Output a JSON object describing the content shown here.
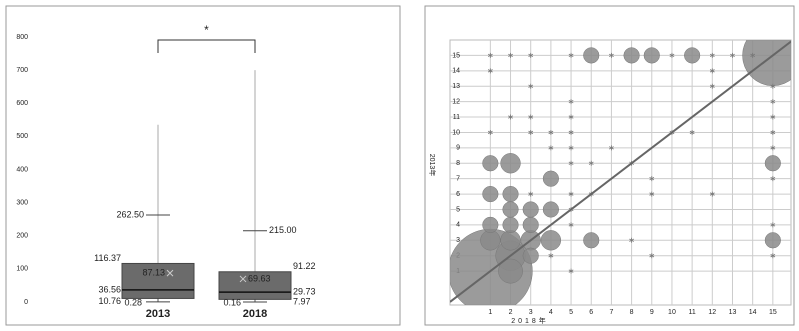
{
  "chart_data": [
    {
      "type": "box",
      "categories": [
        "2013",
        "2018"
      ],
      "color": "#6b6b6b",
      "ylim": [
        0,
        800
      ],
      "yticks": [
        0,
        100,
        200,
        300,
        400,
        500,
        600,
        700,
        800
      ],
      "significance": "*",
      "boxes": [
        {
          "whisker_low": 0.28,
          "q1": 10.76,
          "median": 36.56,
          "mean": 87.13,
          "q3": 116.37,
          "whisker_high": 262.5,
          "max": 535,
          "value_labels": {
            "whisker_high": "262.50"
          }
        },
        {
          "whisker_low": 0.16,
          "q1": 7.97,
          "median": 29.73,
          "mean": 69.63,
          "q3": 91.22,
          "whisker_high": 215,
          "max": 700,
          "value_labels": {
            "whisker_high": "215.00"
          }
        }
      ]
    },
    {
      "type": "bubble",
      "xlabel": "2018年",
      "ylabel": "2013年",
      "color": "#8a8a8a",
      "diagonal": true,
      "grid": true,
      "xlim": [
        -1,
        15.9
      ],
      "ylim": [
        -1.2,
        16
      ],
      "xticks": [
        1,
        2,
        3,
        4,
        5,
        6,
        7,
        8,
        9,
        10,
        11,
        12,
        13,
        14,
        15
      ],
      "yticks": [
        1,
        2,
        3,
        4,
        5,
        6,
        7,
        8,
        9,
        10,
        11,
        12,
        13,
        14,
        15
      ],
      "x": [
        1,
        2,
        2,
        1,
        2,
        3,
        4,
        1,
        2,
        3,
        1,
        2,
        3,
        2,
        4,
        1,
        2,
        3,
        6,
        15,
        15,
        4,
        6,
        8,
        9,
        11,
        15,
        1,
        2,
        3,
        5,
        7,
        10,
        12,
        13,
        14,
        1,
        12,
        3,
        12,
        15,
        5,
        15,
        2,
        3,
        5,
        15,
        1,
        3,
        4,
        5,
        10,
        11,
        15,
        4,
        5,
        7,
        9,
        15,
        5,
        6,
        8,
        15,
        5,
        6,
        9,
        3,
        5,
        12,
        5,
        8,
        15,
        9,
        4,
        15,
        5
      ],
      "y": [
        1,
        2,
        1,
        3,
        3,
        3,
        3,
        4,
        4,
        4,
        6,
        6,
        5,
        5,
        5,
        8,
        8,
        2,
        3,
        8,
        3,
        7,
        15,
        15,
        15,
        15,
        15,
        15,
        15,
        15,
        15,
        15,
        15,
        15,
        15,
        15,
        14,
        14,
        13,
        13,
        13,
        12,
        12,
        11,
        11,
        11,
        11,
        10,
        10,
        10,
        10,
        10,
        10,
        10,
        9,
        9,
        9,
        7,
        7,
        8,
        8,
        8,
        9,
        6,
        6,
        6,
        6,
        5,
        6,
        4,
        3,
        4,
        2,
        2,
        2,
        1
      ],
      "sizes": [
        144,
        18,
        12,
        8,
        8,
        8,
        8,
        5,
        5,
        5,
        5,
        5,
        5,
        5,
        5,
        5,
        8,
        5,
        5,
        5,
        5,
        5,
        5,
        5,
        5,
        5,
        75,
        1,
        1,
        1,
        1,
        1,
        1,
        1,
        1,
        1,
        1,
        1,
        1,
        1,
        1,
        1,
        1,
        1,
        1,
        1,
        1,
        1,
        1,
        1,
        1,
        1,
        1,
        1,
        1,
        1,
        1,
        1,
        1,
        1,
        1,
        1,
        1,
        1,
        1,
        1,
        1,
        1,
        1,
        1,
        1,
        1,
        1,
        1,
        1,
        1
      ]
    }
  ]
}
